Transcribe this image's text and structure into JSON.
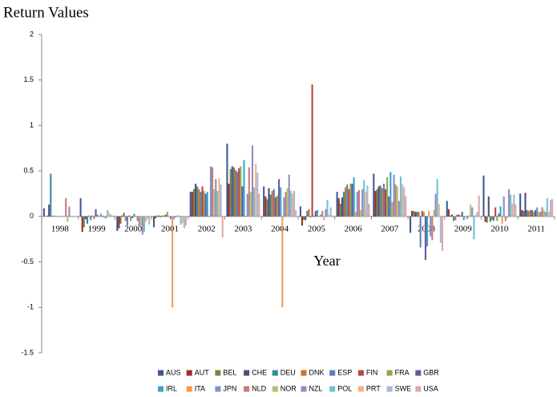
{
  "chart_data": {
    "type": "bar",
    "title": "Return Values",
    "x_label": "Year",
    "categories": [
      "1998",
      "1999",
      "2000",
      "2001",
      "2002",
      "2003",
      "2004",
      "2005",
      "2006",
      "2007",
      "2008",
      "2009",
      "2010",
      "2011"
    ],
    "ylim": [
      -1.5,
      2
    ],
    "yticks": [
      -1.5,
      -1,
      -0.5,
      0,
      0.5,
      1,
      1.5,
      2
    ],
    "grid": false,
    "legend": "bottom",
    "series": [
      {
        "name": "AUS",
        "color": "#3d5a96",
        "values": [
          0.09,
          0.2,
          -0.16,
          -0.12,
          0.27,
          0.8,
          0.33,
          0.11,
          0.27,
          0.47,
          -0.18,
          0.17,
          0.45,
          0.25
        ]
      },
      {
        "name": "AUT",
        "color": "#9b2d2a",
        "values": [
          0,
          -0.17,
          -0.13,
          -0.02,
          0.27,
          0.36,
          0.22,
          -0.1,
          0.2,
          0.28,
          0.06,
          0.08,
          -0.06,
          0.07
        ]
      },
      {
        "name": "BEL",
        "color": "#71893f",
        "values": [
          0.01,
          -0.12,
          -0.08,
          0.01,
          0.3,
          0.52,
          0.19,
          -0.04,
          0.14,
          0.3,
          0.06,
          0.01,
          -0.07,
          0.06
        ]
      },
      {
        "name": "CHE",
        "color": "#5c4776",
        "values": [
          0.13,
          -0.03,
          0.01,
          0.01,
          0.36,
          0.55,
          0.31,
          -0.04,
          0.21,
          0.33,
          0.05,
          0.02,
          0.22,
          0.26
        ]
      },
      {
        "name": "DEU",
        "color": "#358ba2",
        "values": [
          0.47,
          -0.08,
          0.04,
          -0.01,
          0.33,
          0.54,
          0.24,
          0.06,
          0.27,
          0.34,
          0.05,
          -0.05,
          -0.06,
          0.07
        ]
      },
      {
        "name": "DNK",
        "color": "#d16f1c",
        "values": [
          0,
          0.01,
          -0.05,
          0.01,
          0.3,
          0.51,
          0.28,
          0.08,
          0.32,
          0.31,
          0.05,
          -0.04,
          -0.04,
          0.06
        ]
      },
      {
        "name": "ESP",
        "color": "#5f7eb8",
        "values": [
          0.01,
          -0.04,
          -0.1,
          0.01,
          0.27,
          0.49,
          0.3,
          -0.01,
          0.35,
          0.36,
          -0.34,
          0.02,
          -0.05,
          0.07
        ]
      },
      {
        "name": "FIN",
        "color": "#b84643",
        "values": [
          0,
          0.01,
          0.01,
          0.02,
          0.33,
          0.53,
          0.21,
          1.45,
          0.3,
          0.3,
          0.06,
          0.02,
          0.1,
          0.07
        ]
      },
      {
        "name": "FRA",
        "color": "#8aac4c",
        "values": [
          0,
          -0.03,
          -0.05,
          0.05,
          0.28,
          0.55,
          0.23,
          0.01,
          0.36,
          0.43,
          0.05,
          0.01,
          -0.05,
          0.05
        ]
      },
      {
        "name": "GBR",
        "color": "#6e55a0",
        "values": [
          0,
          0.08,
          -0.02,
          0,
          0.25,
          0.33,
          0.41,
          0.06,
          0.36,
          0.22,
          -0.48,
          0.05,
          0.03,
          0.07
        ]
      },
      {
        "name": "IRL",
        "color": "#3aa3c7",
        "values": [
          0,
          0.02,
          0.03,
          -0.03,
          0.27,
          0.62,
          0.32,
          0.07,
          0.43,
          0.49,
          -0.33,
          -0.04,
          0.11,
          0.1
        ]
      },
      {
        "name": "ITA",
        "color": "#f59a50",
        "values": [
          0,
          0,
          0,
          -1,
          0,
          0,
          -1,
          0,
          0.05,
          0.16,
          0.06,
          0,
          -0.08,
          0.05
        ]
      },
      {
        "name": "JPN",
        "color": "#7f94c8",
        "values": [
          0,
          0.03,
          -0.05,
          -0.03,
          0.55,
          0.25,
          0.21,
          0.02,
          0.27,
          0.46,
          -0.22,
          -0.03,
          0.22,
          0.05
        ]
      },
      {
        "name": "NLD",
        "color": "#cc7a7a",
        "values": [
          0.2,
          0.01,
          -0.12,
          -0.01,
          0.54,
          0.54,
          0.27,
          0.06,
          0.29,
          0.35,
          -0.26,
          0.01,
          -0.05,
          0.1
        ]
      },
      {
        "name": "NOR",
        "color": "#a9c67a",
        "values": [
          -0.06,
          -0.02,
          -0.1,
          0.01,
          0.3,
          0.27,
          0.31,
          -0.04,
          0.07,
          0.33,
          0.07,
          0.13,
          -0.02,
          0.07
        ]
      },
      {
        "name": "NZL",
        "color": "#9a88c0",
        "values": [
          0.11,
          -0.02,
          -0.2,
          0.01,
          0.41,
          0.78,
          0.46,
          0.08,
          0.3,
          0.17,
          0.25,
          0.1,
          0.3,
          0.05
        ]
      },
      {
        "name": "POL",
        "color": "#6fc0d8",
        "values": [
          0,
          0.07,
          -0.17,
          -0.09,
          0.28,
          0.32,
          0.28,
          0.18,
          0.4,
          0.44,
          0.41,
          -0.25,
          0.24,
          0.2
        ]
      },
      {
        "name": "PRT",
        "color": "#f7b17e",
        "values": [
          0,
          0.04,
          -0.06,
          -0.07,
          0.42,
          0.58,
          0.25,
          0.02,
          0.27,
          0.35,
          0.14,
          0.02,
          0.14,
          0.05
        ]
      },
      {
        "name": "SWE",
        "color": "#a3b7de",
        "values": [
          0,
          0.02,
          -0.03,
          -0.13,
          0.35,
          0.48,
          0.28,
          0.1,
          0.34,
          0.32,
          -0.29,
          0.05,
          0.24,
          0.18
        ]
      },
      {
        "name": "USA",
        "color": "#e0a7a6",
        "values": [
          0,
          0.01,
          -0.09,
          -0.1,
          -0.23,
          0.25,
          0.07,
          0.01,
          0.14,
          0.22,
          -0.38,
          0.23,
          0.13,
          0.19
        ]
      }
    ]
  }
}
